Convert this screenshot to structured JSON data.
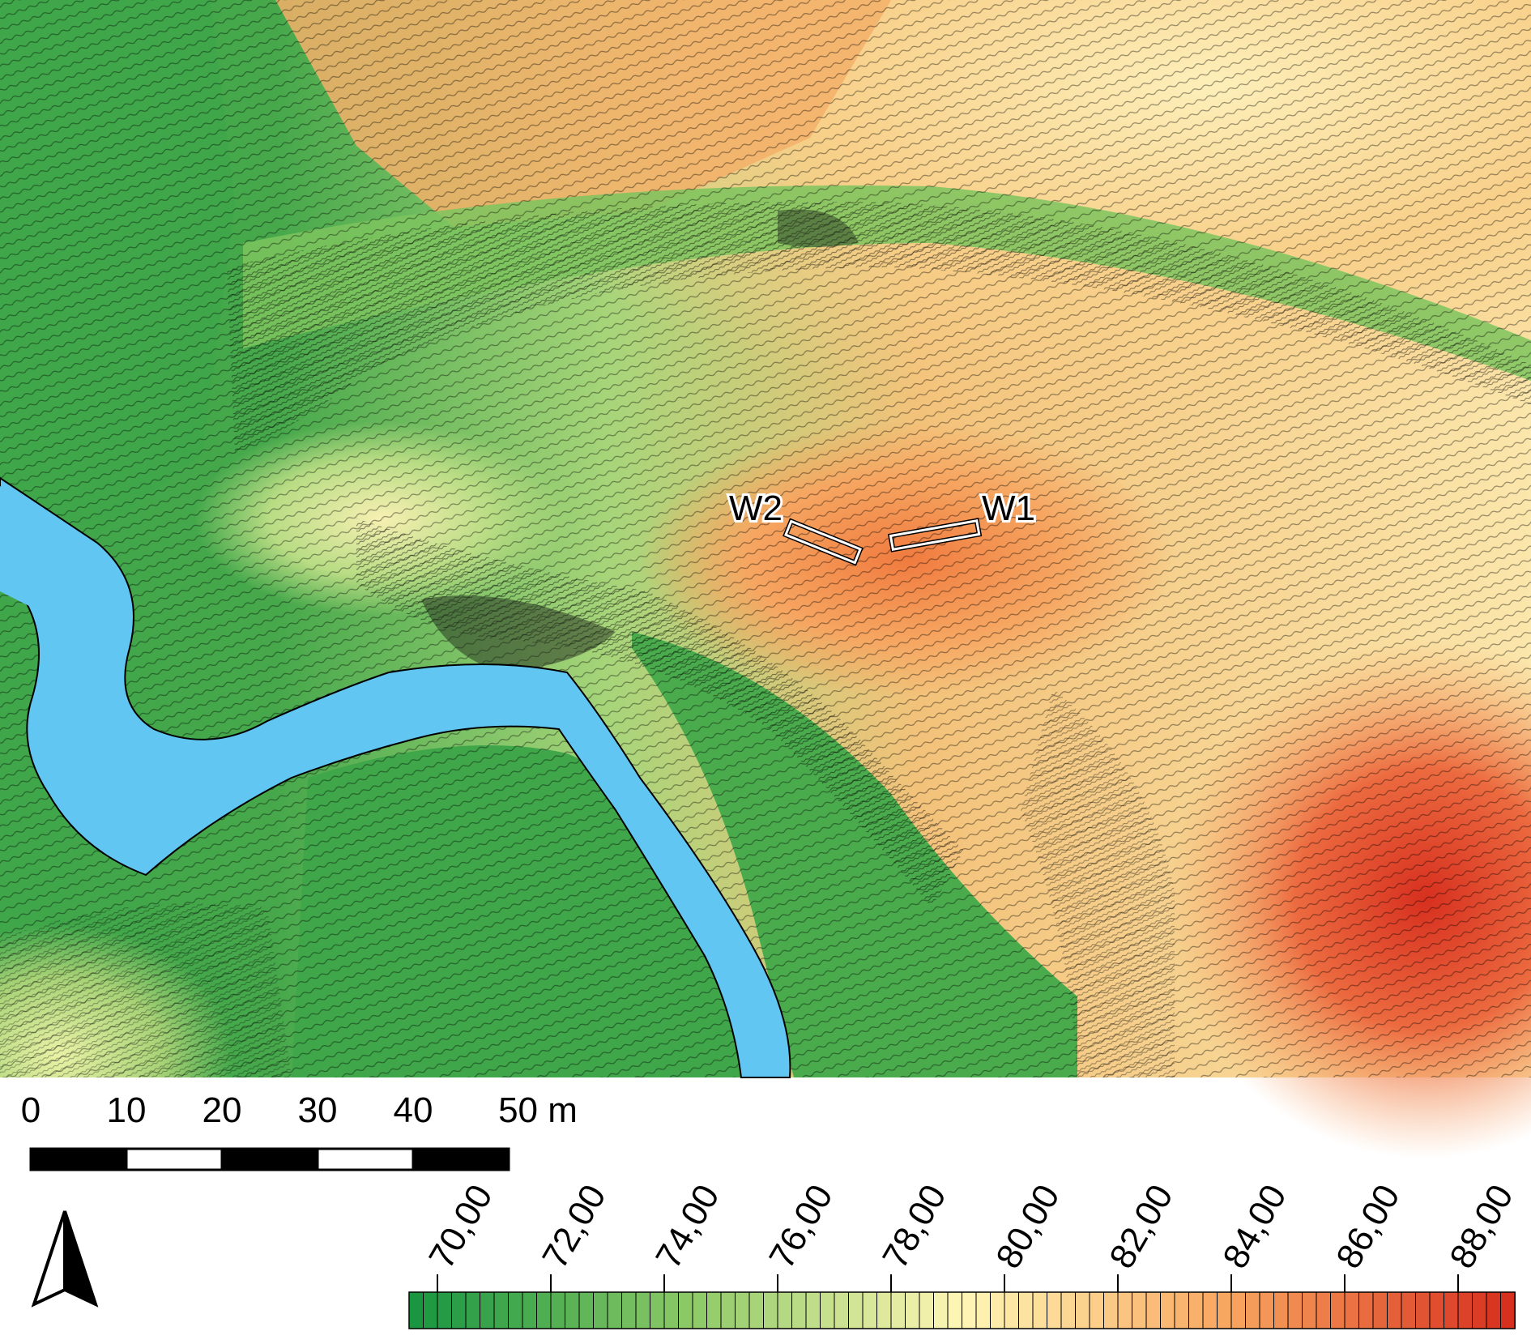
{
  "map": {
    "trench_labels": [
      "W2",
      "W1"
    ],
    "colors": {
      "river": "#62c6f2",
      "low_green": "#22963a",
      "mid_yellow": "#fff2b0",
      "high_red": "#d7301f"
    }
  },
  "scale_bar": {
    "ticks": [
      "0",
      "10",
      "20",
      "30",
      "40",
      "50 m"
    ],
    "max_meters": 50
  },
  "north_arrow": {
    "icon": "north-arrow-icon"
  },
  "legend": {
    "labels": [
      "70,00",
      "72,00",
      "74,00",
      "76,00",
      "78,00",
      "80,00",
      "82,00",
      "84,00",
      "86,00",
      "88,00"
    ],
    "min": 69.5,
    "max": 89.0,
    "step": 0.25
  }
}
